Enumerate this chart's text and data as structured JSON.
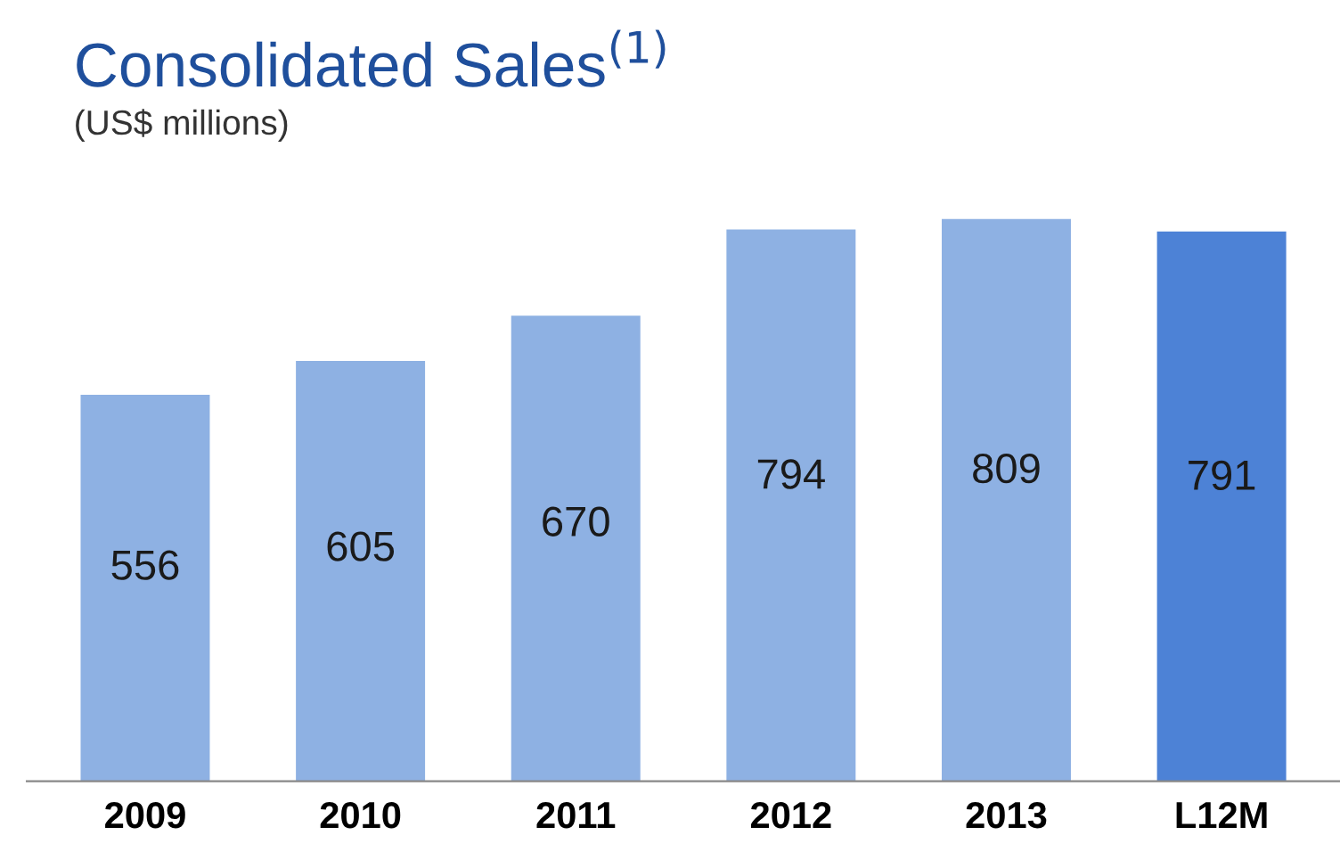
{
  "chart_data": {
    "type": "bar",
    "title": "Consolidated Sales$^{(1)}$",
    "subtitle": "(US$ millions)",
    "categories": [
      "2009",
      "2010",
      "2011",
      "2012",
      "2013",
      "L12M"
    ],
    "values": [
      556,
      605,
      670,
      794,
      809,
      791
    ],
    "colors": [
      "#8eb1e3",
      "#8eb1e3",
      "#8eb1e3",
      "#8eb1e3",
      "#8eb1e3",
      "#4d82d6"
    ],
    "data_labels": true,
    "grid": false,
    "legend": false
  }
}
